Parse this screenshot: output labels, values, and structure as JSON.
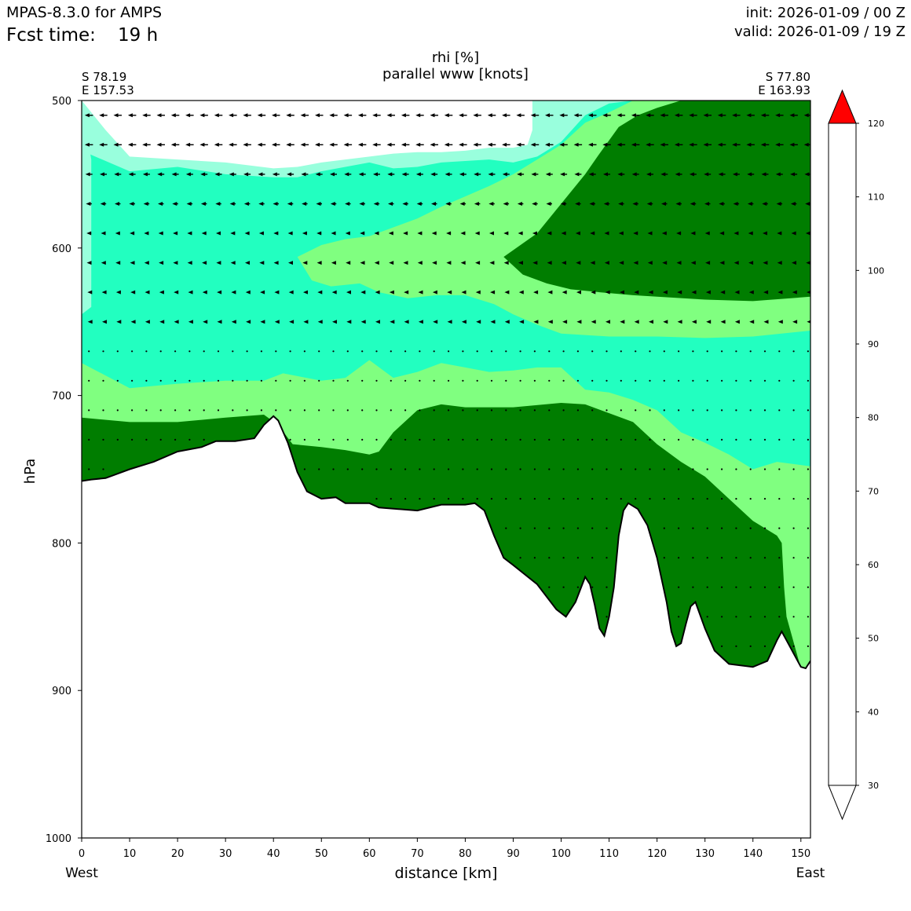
{
  "header": {
    "model": "MPAS-8.3.0 for AMPS",
    "fcst_label": "Fcst time:",
    "fcst_value": "19 h",
    "init": "init: 2026-01-09 / 00 Z",
    "valid": "valid: 2026-01-09 / 19 Z"
  },
  "chart_data": {
    "type": "heatmap",
    "title": "rhi [%]",
    "subtitle": "parallel www [knots]",
    "xlabel": "distance [km]",
    "ylabel": "hPa",
    "xlim": [
      0,
      152
    ],
    "ylim": [
      1000,
      500
    ],
    "x_ticks": [
      0,
      10,
      20,
      30,
      40,
      50,
      60,
      70,
      80,
      90,
      100,
      110,
      120,
      130,
      140,
      150
    ],
    "y_ticks": [
      500,
      600,
      700,
      800,
      900,
      1000
    ],
    "left_end": {
      "side": "West",
      "lat": "S 78.19",
      "lon": "E 157.53"
    },
    "right_end": {
      "side": "East",
      "lat": "S 77.80",
      "lon": "E 163.93"
    },
    "colorbar": {
      "levels": [
        30,
        40,
        50,
        60,
        70,
        80,
        90,
        100,
        110,
        120
      ],
      "colors": [
        "#ffffff",
        "#99ffdd",
        "#22ffc0",
        "#80ff80",
        "#40c040",
        "#007d00",
        "#007d00",
        "#7d3d00",
        "#ff0000"
      ],
      "extend": "both"
    },
    "bands": {
      "terrain": [
        [
          0,
          758
        ],
        [
          2,
          757
        ],
        [
          5,
          756
        ],
        [
          10,
          750
        ],
        [
          15,
          745
        ],
        [
          20,
          738
        ],
        [
          25,
          735
        ],
        [
          28,
          731
        ],
        [
          32,
          731
        ],
        [
          36,
          729
        ],
        [
          38,
          720
        ],
        [
          40,
          714
        ],
        [
          41,
          717
        ],
        [
          43,
          732
        ],
        [
          45,
          752
        ],
        [
          47,
          765
        ],
        [
          50,
          770
        ],
        [
          53,
          769
        ],
        [
          55,
          773
        ],
        [
          60,
          773
        ],
        [
          62,
          776
        ],
        [
          70,
          778
        ],
        [
          75,
          774
        ],
        [
          80,
          774
        ],
        [
          82,
          773
        ],
        [
          84,
          778
        ],
        [
          86,
          795
        ],
        [
          88,
          810
        ],
        [
          90,
          815
        ],
        [
          95,
          828
        ],
        [
          99,
          845
        ],
        [
          101,
          850
        ],
        [
          103,
          840
        ],
        [
          105,
          823
        ],
        [
          106,
          828
        ],
        [
          107,
          842
        ],
        [
          108,
          858
        ],
        [
          109,
          863
        ],
        [
          110,
          850
        ],
        [
          111,
          830
        ],
        [
          112,
          795
        ],
        [
          113,
          778
        ],
        [
          114,
          773
        ],
        [
          116,
          777
        ],
        [
          118,
          788
        ],
        [
          120,
          810
        ],
        [
          122,
          840
        ],
        [
          123,
          860
        ],
        [
          124,
          870
        ],
        [
          125,
          868
        ],
        [
          126,
          855
        ],
        [
          127,
          843
        ],
        [
          128,
          840
        ],
        [
          130,
          858
        ],
        [
          132,
          873
        ],
        [
          135,
          882
        ],
        [
          140,
          884
        ],
        [
          143,
          880
        ],
        [
          145,
          866
        ],
        [
          146,
          860
        ],
        [
          147,
          866
        ],
        [
          150,
          884
        ],
        [
          151,
          885
        ],
        [
          152,
          880
        ]
      ],
      "green_dark": [
        [
          [
            0,
            715
          ],
          [
            10,
            718
          ],
          [
            20,
            718
          ],
          [
            30,
            715
          ],
          [
            38,
            713
          ],
          [
            41,
            720
          ],
          [
            44,
            733
          ],
          [
            50,
            735
          ],
          [
            55,
            737
          ],
          [
            60,
            740
          ],
          [
            62,
            738
          ],
          [
            65,
            725
          ],
          [
            70,
            710
          ],
          [
            75,
            706
          ],
          [
            80,
            708
          ],
          [
            90,
            708
          ],
          [
            100,
            705
          ],
          [
            105,
            706
          ],
          [
            110,
            712
          ],
          [
            115,
            718
          ],
          [
            120,
            733
          ],
          [
            125,
            745
          ],
          [
            130,
            755
          ],
          [
            135,
            770
          ],
          [
            140,
            785
          ],
          [
            145,
            795
          ],
          [
            146,
            800
          ],
          [
            146.5,
            830
          ],
          [
            147,
            850
          ],
          [
            150,
            885
          ],
          [
            152,
            885
          ]
        ]
      ],
      "green_light": [
        [
          [
            0,
            678
          ],
          [
            10,
            695
          ],
          [
            20,
            692
          ],
          [
            30,
            690
          ],
          [
            38,
            690
          ],
          [
            42,
            685
          ],
          [
            50,
            690
          ],
          [
            55,
            688
          ],
          [
            60,
            676
          ],
          [
            65,
            688
          ],
          [
            70,
            684
          ],
          [
            75,
            678
          ],
          [
            80,
            681
          ],
          [
            85,
            684
          ],
          [
            90,
            683
          ],
          [
            95,
            681
          ],
          [
            100,
            681
          ],
          [
            105,
            696
          ],
          [
            110,
            698
          ],
          [
            115,
            703
          ],
          [
            120,
            710
          ],
          [
            125,
            725
          ],
          [
            130,
            732
          ],
          [
            135,
            740
          ],
          [
            140,
            750
          ],
          [
            145,
            745
          ],
          [
            152,
            748
          ]
        ]
      ],
      "green_upper": [
        [
          [
            45,
            606
          ],
          [
            50,
            598
          ],
          [
            55,
            594
          ],
          [
            60,
            592
          ],
          [
            65,
            586
          ],
          [
            70,
            580
          ],
          [
            75,
            572
          ],
          [
            80,
            565
          ],
          [
            85,
            558
          ],
          [
            90,
            550
          ],
          [
            95,
            540
          ],
          [
            100,
            530
          ],
          [
            105,
            515
          ],
          [
            110,
            508
          ],
          [
            115,
            500
          ],
          [
            152,
            500
          ]
        ],
        [
          [
            45,
            606
          ],
          [
            48,
            622
          ],
          [
            52,
            626
          ],
          [
            58,
            624
          ],
          [
            62,
            630
          ],
          [
            68,
            634
          ],
          [
            74,
            632
          ],
          [
            80,
            632
          ],
          [
            86,
            638
          ],
          [
            90,
            645
          ],
          [
            95,
            652
          ],
          [
            100,
            658
          ],
          [
            110,
            660
          ],
          [
            120,
            660
          ],
          [
            130,
            661
          ],
          [
            140,
            660
          ],
          [
            152,
            656
          ]
        ]
      ],
      "green_core": [
        [
          [
            88,
            606
          ],
          [
            95,
            590
          ],
          [
            100,
            570
          ],
          [
            105,
            550
          ],
          [
            108,
            536
          ],
          [
            112,
            518
          ],
          [
            116,
            510
          ],
          [
            120,
            505
          ],
          [
            125,
            500
          ],
          [
            152,
            500
          ]
        ],
        [
          [
            88,
            606
          ],
          [
            92,
            618
          ],
          [
            97,
            624
          ],
          [
            102,
            628
          ],
          [
            108,
            630
          ],
          [
            115,
            632
          ],
          [
            120,
            633
          ],
          [
            130,
            635
          ],
          [
            140,
            636
          ],
          [
            152,
            633
          ]
        ]
      ],
      "teal_light": [
        [
          [
            0,
            534
          ],
          [
            10,
            548
          ],
          [
            20,
            545
          ],
          [
            30,
            550
          ],
          [
            40,
            552
          ],
          [
            45,
            552
          ],
          [
            50,
            548
          ],
          [
            55,
            545
          ],
          [
            60,
            542
          ],
          [
            65,
            546
          ],
          [
            70,
            545
          ],
          [
            75,
            542
          ],
          [
            80,
            541
          ],
          [
            85,
            540
          ],
          [
            90,
            542
          ],
          [
            95,
            538
          ],
          [
            100,
            528
          ],
          [
            105,
            510
          ],
          [
            110,
            502
          ],
          [
            115,
            500
          ],
          [
            152,
            500
          ]
        ]
      ],
      "white_upper": [
        [
          [
            0,
            500
          ],
          [
            5,
            520
          ],
          [
            10,
            538
          ],
          [
            20,
            540
          ],
          [
            30,
            542
          ],
          [
            40,
            546
          ],
          [
            45,
            545
          ],
          [
            50,
            542
          ],
          [
            55,
            540
          ],
          [
            60,
            538
          ],
          [
            65,
            536
          ],
          [
            70,
            535
          ],
          [
            75,
            535
          ],
          [
            80,
            534
          ],
          [
            85,
            532
          ],
          [
            90,
            532
          ],
          [
            93,
            530
          ],
          [
            94,
            520
          ],
          [
            94,
            500
          ]
        ]
      ],
      "teal_left_edge": [
        [
          [
            0,
            500
          ],
          [
            0,
            645
          ],
          [
            2,
            640
          ],
          [
            2,
            540
          ]
        ]
      ]
    },
    "vector_levels": [
      510,
      530,
      550,
      570,
      590,
      610,
      630,
      650,
      670,
      690,
      710,
      730,
      750,
      770,
      790,
      810,
      830,
      850,
      870
    ],
    "vector_columns_km": [
      1.5,
      4.5,
      7.5,
      10.5,
      13.5,
      16.5,
      19.5,
      22.5,
      25.5,
      28.5,
      31.5,
      34.5,
      37.5,
      40.5,
      43.5,
      46.5,
      49.5,
      52.5,
      55.5,
      58.5,
      61.5,
      64.5,
      67.5,
      70.5,
      73.5,
      76.5,
      79.5,
      82.5,
      85.5,
      88.5,
      91.5,
      94.5,
      97.5,
      100.5,
      103.5,
      106.5,
      109.5,
      112.5,
      115.5,
      118.5,
      121.5,
      124.5,
      127.5,
      130.5,
      133.5,
      136.5,
      139.5,
      142.5,
      145.5,
      148.5,
      151.5
    ],
    "vector_speed_knots_by_level": [
      14,
      14,
      12,
      10,
      8,
      7,
      5,
      4,
      2,
      1,
      1,
      1,
      1,
      0.5,
      0.5,
      0.5,
      0.5,
      0.5,
      0.5
    ]
  }
}
